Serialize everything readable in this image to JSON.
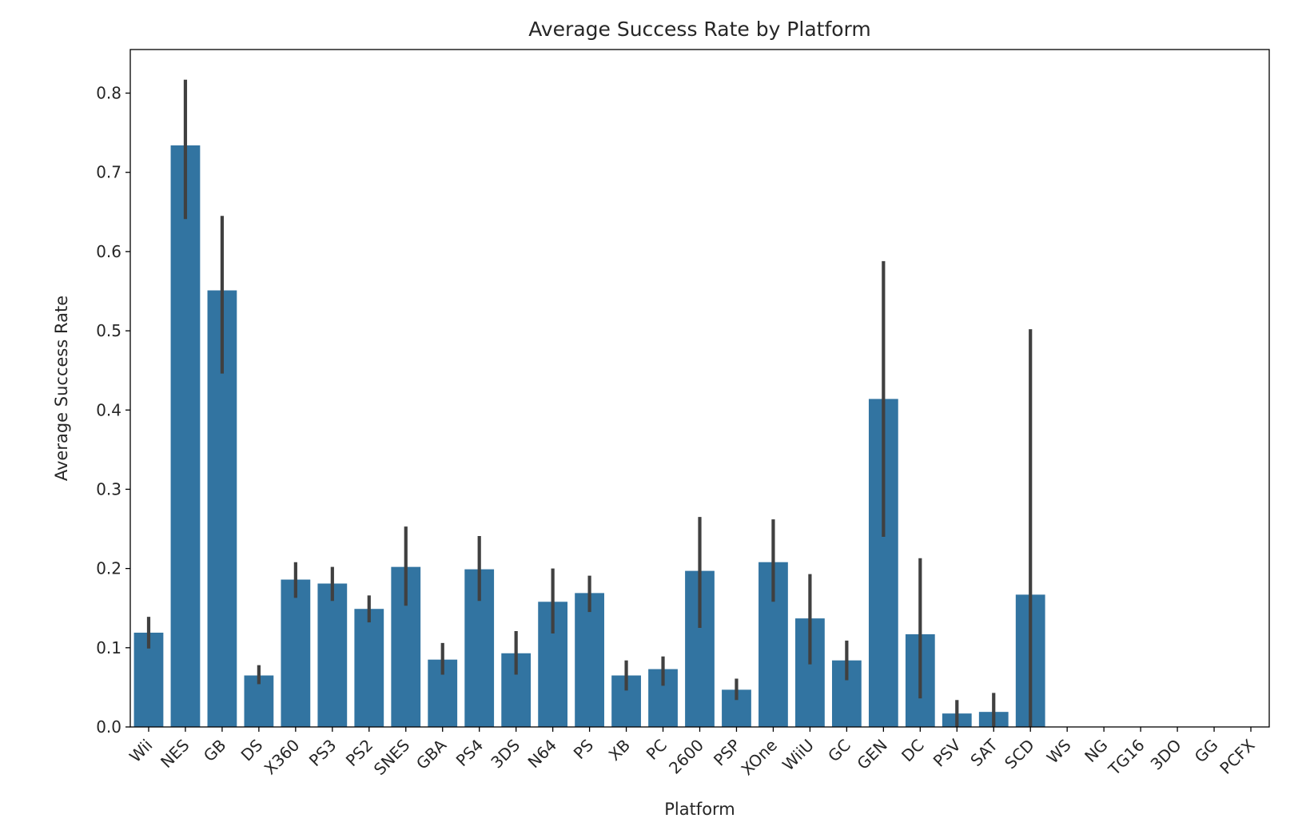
{
  "chart_data": {
    "type": "bar",
    "title": "Average Success Rate by Platform",
    "xlabel": "Platform",
    "ylabel": "Average Success Rate",
    "ylim": [
      0,
      0.855
    ],
    "yticks": [
      "0.0",
      "0.1",
      "0.2",
      "0.3",
      "0.4",
      "0.5",
      "0.6",
      "0.7",
      "0.8"
    ],
    "grid": false,
    "bar_color": "#3274a1",
    "errorbar_color": "#404040",
    "categories": [
      "Wii",
      "NES",
      "GB",
      "DS",
      "X360",
      "PS3",
      "PS2",
      "SNES",
      "GBA",
      "PS4",
      "3DS",
      "N64",
      "PS",
      "XB",
      "PC",
      "2600",
      "PSP",
      "XOne",
      "WiiU",
      "GC",
      "GEN",
      "DC",
      "PSV",
      "SAT",
      "SCD",
      "WS",
      "NG",
      "TG16",
      "3DO",
      "GG",
      "PCFX"
    ],
    "values": [
      0.119,
      0.734,
      0.551,
      0.065,
      0.186,
      0.181,
      0.149,
      0.202,
      0.085,
      0.199,
      0.093,
      0.158,
      0.169,
      0.065,
      0.073,
      0.197,
      0.047,
      0.208,
      0.137,
      0.084,
      0.414,
      0.117,
      0.017,
      0.019,
      0.167,
      0,
      0,
      0,
      0,
      0,
      0
    ],
    "error_low": [
      0.099,
      0.641,
      0.446,
      0.054,
      0.163,
      0.159,
      0.132,
      0.153,
      0.066,
      0.159,
      0.066,
      0.118,
      0.145,
      0.046,
      0.052,
      0.125,
      0.034,
      0.158,
      0.079,
      0.059,
      0.24,
      0.036,
      0.0,
      0.0,
      0.0,
      0,
      0,
      0,
      0,
      0,
      0
    ],
    "error_high": [
      0.139,
      0.817,
      0.645,
      0.078,
      0.208,
      0.202,
      0.166,
      0.253,
      0.106,
      0.241,
      0.121,
      0.2,
      0.191,
      0.084,
      0.089,
      0.265,
      0.061,
      0.262,
      0.193,
      0.109,
      0.588,
      0.213,
      0.034,
      0.043,
      0.502,
      0,
      0,
      0,
      0,
      0,
      0
    ]
  }
}
